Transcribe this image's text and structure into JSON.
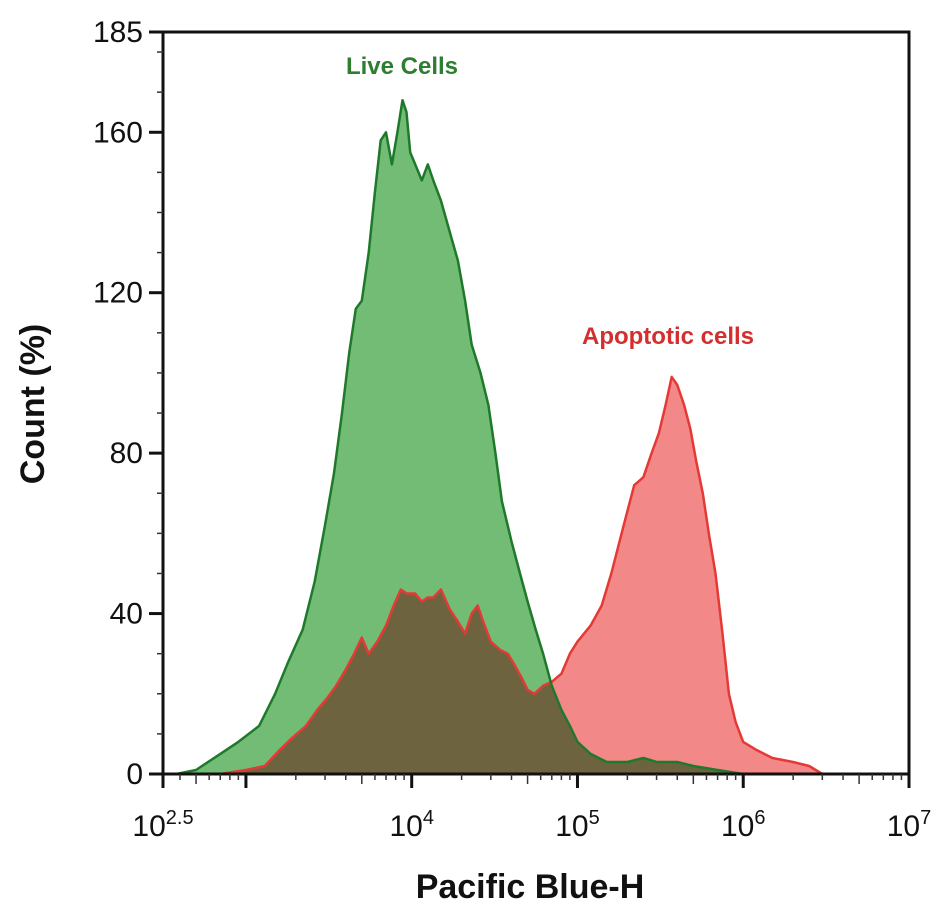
{
  "chart_data": {
    "type": "area",
    "title": "",
    "xlabel": "Pacific Blue-H",
    "ylabel": "Count (%)",
    "x_scale": "log",
    "xlim": [
      316,
      10000000
    ],
    "ylim": [
      0,
      185
    ],
    "x_ticks": [
      {
        "value": 316,
        "base": "10",
        "exp": "2.5"
      },
      {
        "value": 10000,
        "base": "10",
        "exp": "4"
      },
      {
        "value": 100000,
        "base": "10",
        "exp": "5"
      },
      {
        "value": 1000000,
        "base": "10",
        "exp": "6"
      },
      {
        "value": 10000000,
        "base": "10",
        "exp": "7"
      }
    ],
    "y_ticks": [
      {
        "value": 0,
        "label": "0"
      },
      {
        "value": 40,
        "label": "40"
      },
      {
        "value": 80,
        "label": "80"
      },
      {
        "value": 120,
        "label": "120"
      },
      {
        "value": 160,
        "label": "160"
      },
      {
        "value": 185,
        "label": "185"
      }
    ],
    "grid": false,
    "annotations": [
      {
        "text": "Live Cells",
        "color": "#2e7d32"
      },
      {
        "text": "Apoptotic cells",
        "color": "#d32f2f"
      }
    ],
    "series": [
      {
        "color": "#1e7a2a",
        "fill": "#6cb86e",
        "points": [
          [
            380,
            0
          ],
          [
            500,
            1
          ],
          [
            700,
            5
          ],
          [
            900,
            8
          ],
          [
            1200,
            12
          ],
          [
            1500,
            20
          ],
          [
            1800,
            28
          ],
          [
            2200,
            36
          ],
          [
            2600,
            48
          ],
          [
            3000,
            62
          ],
          [
            3400,
            75
          ],
          [
            3800,
            90
          ],
          [
            4200,
            105
          ],
          [
            4600,
            116
          ],
          [
            5000,
            118
          ],
          [
            5500,
            130
          ],
          [
            6000,
            145
          ],
          [
            6500,
            158
          ],
          [
            7000,
            160
          ],
          [
            7600,
            152
          ],
          [
            8200,
            160
          ],
          [
            8800,
            168
          ],
          [
            9300,
            165
          ],
          [
            9800,
            155
          ],
          [
            10500,
            152
          ],
          [
            11500,
            148
          ],
          [
            12500,
            152
          ],
          [
            13500,
            148
          ],
          [
            15000,
            143
          ],
          [
            17000,
            135
          ],
          [
            19000,
            128
          ],
          [
            21000,
            118
          ],
          [
            23000,
            107
          ],
          [
            26000,
            100
          ],
          [
            29000,
            92
          ],
          [
            32000,
            80
          ],
          [
            35000,
            68
          ],
          [
            40000,
            58
          ],
          [
            45000,
            50
          ],
          [
            50000,
            43
          ],
          [
            56000,
            36
          ],
          [
            62000,
            30
          ],
          [
            70000,
            22
          ],
          [
            80000,
            16
          ],
          [
            90000,
            12
          ],
          [
            100000,
            8
          ],
          [
            120000,
            5
          ],
          [
            150000,
            3
          ],
          [
            200000,
            3
          ],
          [
            250000,
            4
          ],
          [
            300000,
            3
          ],
          [
            400000,
            3
          ],
          [
            500000,
            2
          ],
          [
            700000,
            1
          ],
          [
            1000000,
            0
          ]
        ]
      },
      {
        "color": "#e53935",
        "fill": "#f28888",
        "points": [
          [
            700,
            0
          ],
          [
            1000,
            1
          ],
          [
            1300,
            2
          ],
          [
            1600,
            6
          ],
          [
            1900,
            9
          ],
          [
            2300,
            12
          ],
          [
            2700,
            16
          ],
          [
            3100,
            19
          ],
          [
            3500,
            22
          ],
          [
            4000,
            26
          ],
          [
            4500,
            30
          ],
          [
            5000,
            34
          ],
          [
            5500,
            30
          ],
          [
            6200,
            33
          ],
          [
            7000,
            37
          ],
          [
            7800,
            42
          ],
          [
            8600,
            46
          ],
          [
            9300,
            45
          ],
          [
            10500,
            45
          ],
          [
            11500,
            43
          ],
          [
            12500,
            44
          ],
          [
            13500,
            44
          ],
          [
            15000,
            46
          ],
          [
            17000,
            41
          ],
          [
            19000,
            38
          ],
          [
            21000,
            35
          ],
          [
            23000,
            40
          ],
          [
            25000,
            42
          ],
          [
            27000,
            38
          ],
          [
            30000,
            33
          ],
          [
            34000,
            31
          ],
          [
            38000,
            30
          ],
          [
            42000,
            27
          ],
          [
            46000,
            24
          ],
          [
            50000,
            21
          ],
          [
            55000,
            20
          ],
          [
            62000,
            22
          ],
          [
            70000,
            23
          ],
          [
            80000,
            25
          ],
          [
            90000,
            30
          ],
          [
            100000,
            33
          ],
          [
            120000,
            37
          ],
          [
            140000,
            42
          ],
          [
            160000,
            50
          ],
          [
            190000,
            62
          ],
          [
            220000,
            72
          ],
          [
            250000,
            74
          ],
          [
            280000,
            80
          ],
          [
            310000,
            85
          ],
          [
            340000,
            92
          ],
          [
            370000,
            99
          ],
          [
            400000,
            97
          ],
          [
            440000,
            92
          ],
          [
            480000,
            86
          ],
          [
            520000,
            78
          ],
          [
            570000,
            70
          ],
          [
            620000,
            60
          ],
          [
            680000,
            50
          ],
          [
            750000,
            35
          ],
          [
            820000,
            20
          ],
          [
            900000,
            13
          ],
          [
            1000000,
            8
          ],
          [
            1200000,
            6
          ],
          [
            1500000,
            4
          ],
          [
            2000000,
            3
          ],
          [
            2500000,
            2
          ],
          [
            3000000,
            0
          ]
        ]
      }
    ]
  }
}
